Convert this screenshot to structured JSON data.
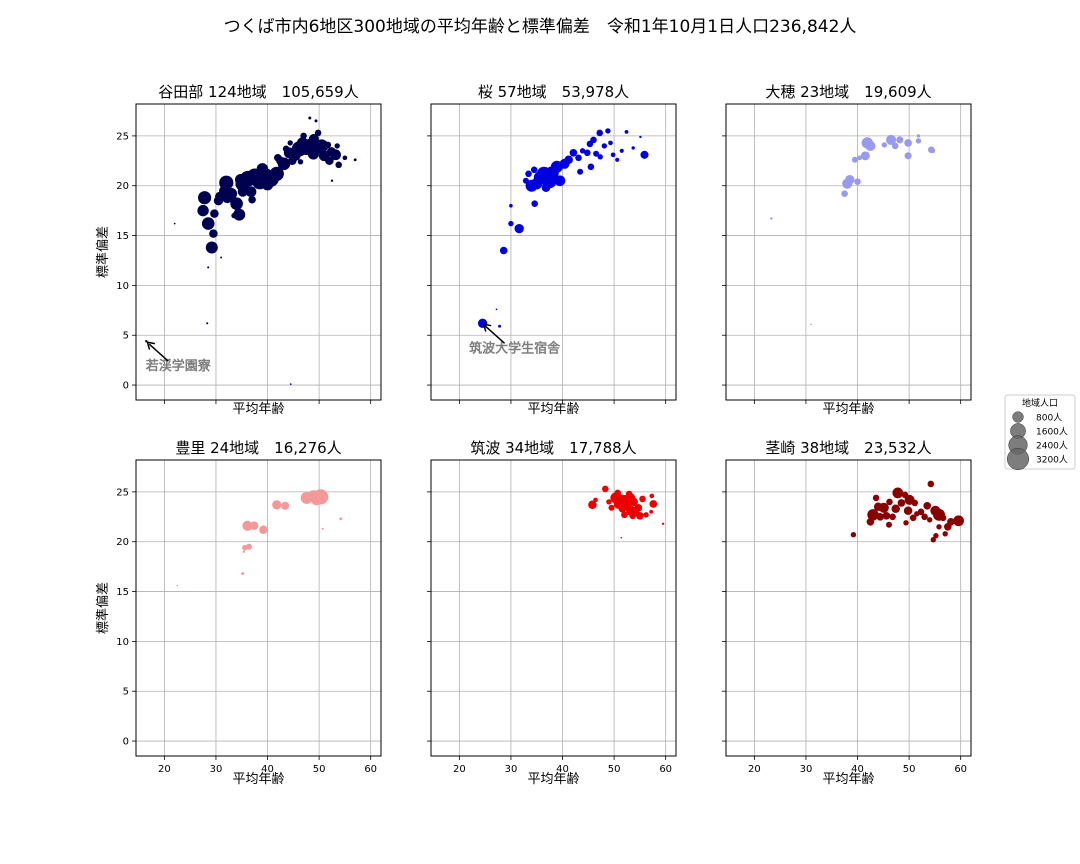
{
  "chart_data": {
    "type": "scatter",
    "title": "つくば市内6地区300地域の平均年齢と標準偏差　令和1年10月1日人口236,842人",
    "xlabel": "平均年齢",
    "ylabel": "標準偏差",
    "xlim": [
      14.5,
      62
    ],
    "ylim": [
      -1.5,
      28.2
    ],
    "xticks": [
      20,
      30,
      40,
      50,
      60
    ],
    "yticks": [
      0,
      5,
      10,
      15,
      20,
      25
    ],
    "grid": true,
    "legend": {
      "title": "地域人口",
      "placement": "right",
      "entries": [
        {
          "label": "800人",
          "population": 800
        },
        {
          "label": "1600人",
          "population": 1600
        },
        {
          "label": "2400人",
          "population": 2400
        },
        {
          "label": "3200人",
          "population": 3200
        }
      ]
    },
    "panels": [
      {
        "title": "谷田部  124地域　105,659人",
        "color": "#000050",
        "annotation": {
          "text": "若渓学園寮",
          "x": 16.5,
          "y": 4.4
        },
        "points": [
          [
            16.5,
            4.4,
            40
          ],
          [
            22,
            16.2,
            20
          ],
          [
            28.5,
            11.8,
            30
          ],
          [
            28.3,
            6.2,
            30
          ],
          [
            44.5,
            0.1,
            15
          ],
          [
            31,
            12.8,
            25
          ],
          [
            27.5,
            17.5,
            900
          ],
          [
            27.8,
            18.8,
            1200
          ],
          [
            28.5,
            16.2,
            1100
          ],
          [
            29.5,
            15.2,
            500
          ],
          [
            29.2,
            13.8,
            1000
          ],
          [
            30.5,
            18.5,
            600
          ],
          [
            32,
            20.3,
            1400
          ],
          [
            33,
            19.2,
            900
          ],
          [
            34,
            18.2,
            1100
          ],
          [
            34.5,
            17.1,
            1000
          ],
          [
            35.2,
            20.2,
            1500
          ],
          [
            33.5,
            17,
            200
          ],
          [
            36.2,
            20.7,
            1700
          ],
          [
            37.5,
            21,
            1500
          ],
          [
            38.5,
            20.4,
            1600
          ],
          [
            39.5,
            21,
            1700
          ],
          [
            40.6,
            20.7,
            1900
          ],
          [
            41.8,
            21.2,
            1400
          ],
          [
            42.5,
            22.5,
            500
          ],
          [
            43.2,
            22.2,
            1100
          ],
          [
            44.2,
            23.3,
            800
          ],
          [
            45.4,
            23.2,
            1000
          ],
          [
            46.2,
            23.7,
            1600
          ],
          [
            46.8,
            24.3,
            900
          ],
          [
            47.5,
            23.8,
            1400
          ],
          [
            48.4,
            24.1,
            1200
          ],
          [
            49,
            24.7,
            700
          ],
          [
            49.8,
            25.3,
            300
          ],
          [
            50.5,
            24,
            1200
          ],
          [
            51,
            23,
            800
          ],
          [
            52,
            22.5,
            500
          ],
          [
            52.4,
            23.4,
            600
          ],
          [
            53.2,
            23.1,
            800
          ],
          [
            53.8,
            22.1,
            300
          ],
          [
            55,
            22.8,
            150
          ],
          [
            57,
            22.6,
            60
          ],
          [
            52.5,
            20.5,
            40
          ],
          [
            49.4,
            26.5,
            60
          ],
          [
            48.2,
            26.8,
            60
          ],
          [
            35.2,
            19.4,
            700
          ],
          [
            37,
            18.6,
            400
          ],
          [
            32.2,
            18.8,
            800
          ],
          [
            39,
            21.7,
            900
          ],
          [
            42,
            22.8,
            400
          ],
          [
            44.8,
            22.5,
            500
          ],
          [
            41,
            20.8,
            700
          ],
          [
            36.8,
            19.4,
            800
          ],
          [
            40,
            20.1,
            900
          ],
          [
            45.6,
            22.9,
            400
          ],
          [
            48.9,
            23.2,
            900
          ],
          [
            51.7,
            24.1,
            300
          ],
          [
            53.5,
            24,
            200
          ],
          [
            47,
            25,
            300
          ],
          [
            43.6,
            23.7,
            300
          ],
          [
            38,
            21.2,
            500
          ],
          [
            34.8,
            20.6,
            900
          ],
          [
            31.5,
            19.5,
            600
          ],
          [
            30.8,
            18.9,
            700
          ],
          [
            29.7,
            17.2,
            500
          ],
          [
            50,
            23.7,
            600
          ],
          [
            46.4,
            22.4,
            200
          ],
          [
            44.4,
            24.3,
            200
          ]
        ]
      },
      {
        "title": "桜  57地域　53,978人",
        "color": "#0000e0",
        "annotation": {
          "text": "筑波大学生宿舎",
          "x": 24.5,
          "y": 6.2
        },
        "points": [
          [
            24.5,
            6.2,
            600
          ],
          [
            27.2,
            7.6,
            20
          ],
          [
            27.8,
            5.9,
            60
          ],
          [
            28.6,
            13.5,
            400
          ],
          [
            30,
            16.2,
            200
          ],
          [
            30,
            18,
            90
          ],
          [
            31.6,
            15.7,
            600
          ],
          [
            32.9,
            20.5,
            250
          ],
          [
            33.4,
            21.2,
            300
          ],
          [
            34,
            20,
            1000
          ],
          [
            34.6,
            18.2,
            300
          ],
          [
            35,
            20.2,
            900
          ],
          [
            35.7,
            20.8,
            1200
          ],
          [
            36.4,
            21.2,
            1400
          ],
          [
            37.4,
            20.5,
            1600
          ],
          [
            38,
            21.3,
            1200
          ],
          [
            38.9,
            21.9,
            1000
          ],
          [
            39.5,
            20.5,
            800
          ],
          [
            40.4,
            22.2,
            700
          ],
          [
            41.2,
            22.6,
            500
          ],
          [
            42.1,
            23.3,
            400
          ],
          [
            43.1,
            22.8,
            300
          ],
          [
            43.9,
            23.5,
            200
          ],
          [
            44.8,
            23.3,
            300
          ],
          [
            45.3,
            24.2,
            300
          ],
          [
            46,
            24.6,
            300
          ],
          [
            46.5,
            23.2,
            250
          ],
          [
            47.2,
            25.3,
            300
          ],
          [
            47.3,
            22.9,
            200
          ],
          [
            48.1,
            24,
            200
          ],
          [
            48.8,
            25.5,
            200
          ],
          [
            49.3,
            24.3,
            150
          ],
          [
            49.8,
            23.1,
            150
          ],
          [
            50.6,
            22.6,
            120
          ],
          [
            51.5,
            23.5,
            120
          ],
          [
            52.4,
            25.4,
            100
          ],
          [
            53.7,
            23.8,
            80
          ],
          [
            55.1,
            24.9,
            40
          ],
          [
            55.9,
            23.1,
            450
          ],
          [
            45.5,
            21.9,
            300
          ],
          [
            43.4,
            21.4,
            250
          ],
          [
            36.8,
            19.8,
            500
          ],
          [
            35.3,
            20.6,
            500
          ],
          [
            34.5,
            21.6,
            300
          ]
        ]
      },
      {
        "title": "大穂  23地域　19,609人",
        "color": "#9999ee",
        "annotation": null,
        "points": [
          [
            23.3,
            16.7,
            40
          ],
          [
            31,
            6.1,
            15
          ],
          [
            37.5,
            19.2,
            300
          ],
          [
            38,
            20.2,
            700
          ],
          [
            38.5,
            20.6,
            600
          ],
          [
            39.5,
            22.6,
            250
          ],
          [
            40.4,
            22.8,
            150
          ],
          [
            41.5,
            23,
            550
          ],
          [
            41.9,
            24.3,
            900
          ],
          [
            42.5,
            24,
            700
          ],
          [
            45.2,
            24.1,
            200
          ],
          [
            46.5,
            24.6,
            700
          ],
          [
            47.3,
            24,
            300
          ],
          [
            48.2,
            24.6,
            350
          ],
          [
            49.8,
            24.3,
            400
          ],
          [
            49.8,
            23,
            350
          ],
          [
            51.8,
            24.5,
            200
          ],
          [
            51.8,
            25,
            80
          ],
          [
            54.3,
            23.6,
            300
          ],
          [
            54.6,
            23.5,
            150
          ],
          [
            40,
            20.4,
            300
          ]
        ]
      },
      {
        "title": "豊里  24地域　16,276人",
        "color": "#f49999",
        "annotation": null,
        "points": [
          [
            22.5,
            15.6,
            15
          ],
          [
            35.2,
            16.8,
            60
          ],
          [
            35.4,
            19,
            40
          ],
          [
            35.6,
            19.4,
            200
          ],
          [
            36.4,
            19.5,
            250
          ],
          [
            36.1,
            21.6,
            700
          ],
          [
            37.4,
            21.6,
            500
          ],
          [
            39.2,
            21.2,
            500
          ],
          [
            41.8,
            23.7,
            600
          ],
          [
            43.4,
            23.6,
            450
          ],
          [
            47.6,
            24.4,
            1000
          ],
          [
            48.9,
            24.6,
            900
          ],
          [
            50.3,
            24.5,
            1600
          ],
          [
            50.7,
            21.3,
            30
          ],
          [
            54.2,
            22.3,
            60
          ],
          [
            49.5,
            24.2,
            800
          ]
        ]
      },
      {
        "title": "筑波  34地域　17,788人",
        "color": "#ee0000",
        "annotation": null,
        "points": [
          [
            45.8,
            23.7,
            500
          ],
          [
            46.4,
            24.2,
            150
          ],
          [
            48.3,
            25.3,
            300
          ],
          [
            49.5,
            23.4,
            250
          ],
          [
            50.3,
            24.4,
            800
          ],
          [
            50.9,
            23.8,
            700
          ],
          [
            51.2,
            24.2,
            900
          ],
          [
            51.6,
            23.3,
            400
          ],
          [
            51.4,
            20.4,
            20
          ],
          [
            52.2,
            24.1,
            1000
          ],
          [
            52.5,
            23.6,
            600
          ],
          [
            53.1,
            24.4,
            700
          ],
          [
            53.3,
            23.1,
            700
          ],
          [
            53.8,
            24,
            500
          ],
          [
            54.3,
            22.9,
            300
          ],
          [
            55,
            22.6,
            400
          ],
          [
            55.5,
            24.3,
            300
          ],
          [
            56.2,
            22.7,
            200
          ],
          [
            57.3,
            24.6,
            150
          ],
          [
            57.6,
            23.8,
            400
          ],
          [
            57.2,
            23,
            100
          ],
          [
            59.5,
            21.8,
            40
          ],
          [
            52.9,
            24.8,
            300
          ],
          [
            50.7,
            24.9,
            300
          ],
          [
            49,
            24,
            200
          ],
          [
            52,
            22.7,
            300
          ],
          [
            54.7,
            23.4,
            400
          ],
          [
            53.6,
            22.6,
            300
          ]
        ]
      },
      {
        "title": "茎崎  38地域　23,532人",
        "color": "#880000",
        "annotation": null,
        "points": [
          [
            39.2,
            20.7,
            200
          ],
          [
            42.5,
            22,
            400
          ],
          [
            43,
            22.7,
            900
          ],
          [
            43.6,
            24.4,
            300
          ],
          [
            44,
            23.5,
            500
          ],
          [
            44.4,
            22.5,
            400
          ],
          [
            45.1,
            23.4,
            700
          ],
          [
            45.6,
            22.6,
            400
          ],
          [
            46.2,
            24,
            300
          ],
          [
            46.8,
            22.5,
            300
          ],
          [
            47.4,
            23.3,
            500
          ],
          [
            47.8,
            24.9,
            800
          ],
          [
            48.5,
            23.9,
            400
          ],
          [
            49.2,
            24.7,
            300
          ],
          [
            49.8,
            23.1,
            500
          ],
          [
            50.1,
            24.2,
            700
          ],
          [
            50.8,
            22.4,
            300
          ],
          [
            51.1,
            23.9,
            300
          ],
          [
            51.5,
            22.8,
            200
          ],
          [
            52.3,
            23,
            300
          ],
          [
            53.5,
            23.6,
            400
          ],
          [
            54,
            22.2,
            200
          ],
          [
            54.2,
            25.8,
            300
          ],
          [
            54.7,
            20.2,
            200
          ],
          [
            55.1,
            23.1,
            700
          ],
          [
            55.8,
            22.7,
            1000
          ],
          [
            55.8,
            21.5,
            200
          ],
          [
            55.2,
            20.6,
            200
          ],
          [
            56.6,
            22.4,
            300
          ],
          [
            57.5,
            21.5,
            400
          ],
          [
            58.1,
            22,
            400
          ],
          [
            59.6,
            22.1,
            800
          ],
          [
            53,
            22.5,
            300
          ],
          [
            49.4,
            21.9,
            200
          ],
          [
            46.1,
            21.7,
            250
          ],
          [
            57,
            20.8,
            200
          ]
        ]
      }
    ]
  }
}
